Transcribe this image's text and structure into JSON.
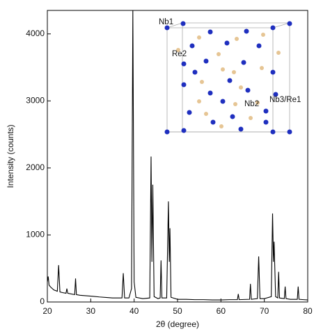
{
  "chart_data": {
    "type": "line",
    "xlabel": "2θ (degree)",
    "ylabel": "Intensity (counts)",
    "xlim": [
      20,
      80
    ],
    "ylim": [
      0,
      4350
    ],
    "xticks": [
      20,
      30,
      40,
      50,
      60,
      70,
      80
    ],
    "yticks": [
      0,
      1000,
      2000,
      3000,
      4000
    ],
    "annotations": [
      "Nb1",
      "Re2",
      "Nb2",
      "Nb3/Re1"
    ],
    "x": [
      20.0,
      20.2,
      20.4,
      20.8,
      21.5,
      22.3,
      22.6,
      22.9,
      23.5,
      24.3,
      24.5,
      24.7,
      25.5,
      26.3,
      26.5,
      26.7,
      27.5,
      28.5,
      29.5,
      30.5,
      32,
      34,
      35,
      36,
      37.2,
      37.5,
      37.8,
      38.8,
      39.4,
      39.7,
      40.0,
      40.4,
      42,
      43.6,
      43.9,
      44.1,
      44.3,
      44.6,
      45.5,
      46.0,
      46.2,
      46.4,
      47.5,
      47.9,
      48.1,
      48.25,
      48.5,
      50,
      52,
      54,
      56,
      58,
      60,
      62,
      63.8,
      64.0,
      64.2,
      66.6,
      66.8,
      67.0,
      68.4,
      68.7,
      69.0,
      70,
      71.6,
      71.9,
      72.1,
      72.25,
      72.6,
      73.1,
      73.3,
      73.5,
      74.6,
      74.8,
      75.0,
      76,
      77.6,
      77.8,
      78,
      79,
      80
    ],
    "series": [
      {
        "color": "#000000",
        "values": [
          300,
          380,
          250,
          220,
          180,
          160,
          550,
          150,
          140,
          130,
          200,
          130,
          120,
          110,
          350,
          110,
          100,
          95,
          90,
          85,
          75,
          65,
          60,
          60,
          60,
          430,
          60,
          60,
          200,
          4350,
          300,
          70,
          50,
          60,
          2170,
          600,
          1750,
          80,
          50,
          60,
          620,
          60,
          60,
          1500,
          600,
          1100,
          70,
          40,
          40,
          35,
          35,
          30,
          30,
          35,
          35,
          120,
          35,
          40,
          270,
          40,
          50,
          680,
          50,
          50,
          80,
          1320,
          600,
          900,
          80,
          60,
          450,
          60,
          50,
          230,
          50,
          40,
          40,
          230,
          40,
          35,
          30
        ]
      }
    ]
  }
}
